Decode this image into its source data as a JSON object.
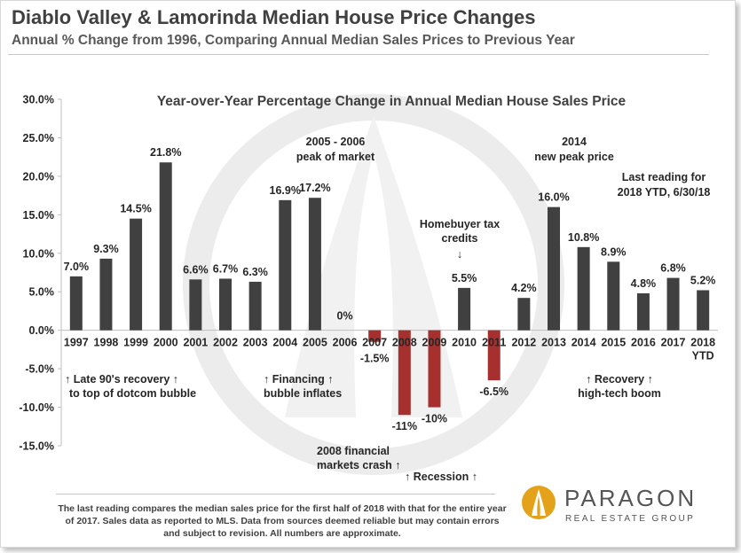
{
  "header": {
    "title": "Diablo Valley & Lamorinda Median House Price Changes",
    "subtitle": "Annual % Change from 1996, Comparing Annual Median Sales Prices to Previous Year"
  },
  "chart_data": {
    "type": "bar",
    "title": "Year-over-Year Percentage Change in Annual Median House Sales Price",
    "xlabel": "",
    "ylabel": "",
    "ylim": [
      -15,
      30
    ],
    "y_ticks": [
      30,
      25,
      20,
      15,
      10,
      5,
      0,
      -5,
      -10,
      -15
    ],
    "y_tick_labels": [
      "30.0%",
      "25.0%",
      "20.0%",
      "15.0%",
      "10.0%",
      "5.0%",
      "0.0%",
      "-5.0%",
      "-10.0%",
      "-15.0%"
    ],
    "categories": [
      "1997",
      "1998",
      "1999",
      "2000",
      "2001",
      "2002",
      "2003",
      "2004",
      "2005",
      "2006",
      "2007",
      "2008",
      "2009",
      "2010",
      "2011",
      "2012",
      "2013",
      "2014",
      "2015",
      "2016",
      "2017",
      "2018"
    ],
    "category_sublabels": [
      "",
      "",
      "",
      "",
      "",
      "",
      "",
      "",
      "",
      "",
      "",
      "",
      "",
      "",
      "",
      "",
      "",
      "",
      "",
      "",
      "",
      "YTD"
    ],
    "values": [
      7.0,
      9.3,
      14.5,
      21.8,
      6.6,
      6.7,
      6.3,
      16.9,
      17.2,
      0,
      -1.5,
      -11,
      -10,
      5.5,
      -6.5,
      4.2,
      16.0,
      10.8,
      8.9,
      4.8,
      6.8,
      5.2
    ],
    "data_labels": [
      "7.0%",
      "9.3%",
      "14.5%",
      "21.8%",
      "6.6%",
      "6.7%",
      "6.3%",
      "16.9%",
      "17.2%",
      "0%",
      "-1.5%",
      "-11%",
      "-10%",
      "5.5%",
      "-6.5%",
      "4.2%",
      "16.0%",
      "10.8%",
      "8.9%",
      "4.8%",
      "6.8%",
      "5.2%"
    ],
    "colors": {
      "positive": "#404040",
      "negative": "#a6302e"
    },
    "annotations": {
      "late90s": [
        "↑ Late 90's recovery ↑",
        "to top of dotcom bubble"
      ],
      "financing": [
        "↑ Financing ↑",
        "bubble inflates"
      ],
      "peak2005": [
        "2005 - 2006",
        "peak of market"
      ],
      "crash2008": [
        "2008 financial",
        "markets crash ↑"
      ],
      "recession": "↑ Recession ↑",
      "taxcredits": [
        "Homebuyer tax",
        "credits",
        "↓"
      ],
      "peak2014": [
        "2014",
        "new peak price"
      ],
      "lastreading": [
        "Last reading for",
        "2018 YTD, 6/30/18"
      ],
      "recovery": [
        "↑ Recovery ↑",
        "high-tech boom"
      ]
    }
  },
  "footnote": "The last reading compares the median sales price for the first half of 2018 with that for the entire year of 2017. Sales data as reported to MLS. Data from sources deemed reliable but may contain errors and subject to revision. All numbers are approximate.",
  "logo": {
    "name": "PARAGON",
    "tagline": "REAL ESTATE GROUP"
  }
}
